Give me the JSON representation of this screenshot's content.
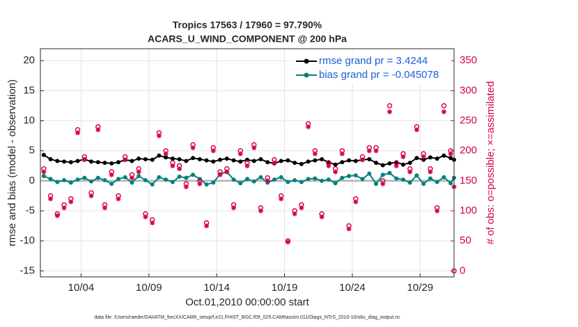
{
  "chart_data": {
    "type": "line",
    "title": "Tropics 17563 / 17960 = 97.790%",
    "subtitle": "ACARS_U_WIND_COMPONENT @ 200 hPa",
    "xlabel": "Oct.01,2010 00:00:00 start",
    "ylabel": "rmse and bias (model - observation)",
    "y2label": "# of obs: o=possible; ×=assimilated",
    "footnote": "data file: /Users/raeder/DAI/ATM_forcXX/CAM6_setup/f.e21.FHIST_BGC.f09_025.CAM6assim.011/Diags_NTrS_2010-10/obs_diag_output.nc",
    "xlim": [
      0,
      30.5
    ],
    "xticks": [
      {
        "value": 3,
        "label": "10/04"
      },
      {
        "value": 8,
        "label": "10/09"
      },
      {
        "value": 13,
        "label": "10/14"
      },
      {
        "value": 18,
        "label": "10/19"
      },
      {
        "value": 23,
        "label": "10/24"
      },
      {
        "value": 28,
        "label": "10/29"
      }
    ],
    "ylim": [
      -16,
      22
    ],
    "yticks": [
      -15,
      -10,
      -5,
      0,
      5,
      10,
      15,
      20
    ],
    "y2lim": [
      -10,
      370
    ],
    "y2ticks": [
      0,
      50,
      100,
      150,
      200,
      250,
      300,
      350
    ],
    "grid": true,
    "legend": "upper right",
    "x": [
      0.25,
      0.75,
      1.25,
      1.75,
      2.25,
      2.75,
      3.25,
      3.75,
      4.25,
      4.75,
      5.25,
      5.75,
      6.25,
      6.75,
      7.25,
      7.75,
      8.25,
      8.75,
      9.25,
      9.75,
      10.25,
      10.75,
      11.25,
      11.75,
      12.25,
      12.75,
      13.25,
      13.75,
      14.25,
      14.75,
      15.25,
      15.75,
      16.25,
      16.75,
      17.25,
      17.75,
      18.25,
      18.75,
      19.25,
      19.75,
      20.25,
      20.75,
      21.25,
      21.75,
      22.25,
      22.75,
      23.25,
      23.75,
      24.25,
      24.75,
      25.25,
      25.75,
      26.25,
      26.75,
      27.25,
      27.75,
      28.25,
      28.75,
      29.25,
      29.75,
      30.25,
      30.5
    ],
    "series": [
      {
        "name": "rmse grand pr = 3.4244",
        "color": "#000000",
        "marker": "dot",
        "values": [
          4.3,
          3.6,
          3.3,
          3.2,
          3.1,
          3.3,
          3.6,
          3.2,
          3.1,
          3.0,
          2.9,
          3.1,
          3.5,
          3.3,
          3.7,
          3.6,
          3.5,
          4.2,
          3.9,
          3.7,
          3.6,
          3.3,
          3.8,
          3.6,
          3.4,
          3.2,
          3.5,
          3.7,
          3.4,
          3.2,
          3.5,
          3.3,
          3.6,
          3.1,
          2.9,
          3.3,
          3.4,
          3.0,
          2.8,
          3.2,
          3.4,
          3.6,
          3.1,
          2.7,
          3.1,
          3.4,
          3.3,
          3.5,
          3.6,
          3.0,
          2.6,
          2.9,
          3.1,
          2.7,
          3.0,
          3.8,
          3.5,
          3.9,
          3.7,
          4.2,
          3.8,
          3.5
        ]
      },
      {
        "name": "bias grand pr = -0.045078",
        "color": "#008080",
        "marker": "dot",
        "values": [
          0.8,
          0.3,
          -0.2,
          0.1,
          -0.3,
          0.2,
          0.5,
          -0.1,
          0.5,
          0.1,
          -0.5,
          0.3,
          0.6,
          -0.3,
          0.8,
          0.1,
          -0.6,
          0.6,
          0.2,
          -0.2,
          0.7,
          0.5,
          1.0,
          0.3,
          -0.6,
          -0.3,
          1.1,
          1.5,
          0.2,
          -0.4,
          0.3,
          -0.1,
          0.6,
          -0.3,
          0.2,
          0.6,
          -0.2,
          0.1,
          -0.2,
          0.3,
          0.4,
          0.0,
          0.2,
          -0.4,
          0.5,
          0.8,
          0.9,
          0.3,
          1.2,
          -0.5,
          1.0,
          1.3,
          0.4,
          0.2,
          -0.3,
          0.9,
          -0.5,
          0.4,
          -0.2,
          0.6,
          -0.4,
          0.5
        ]
      },
      {
        "color": "#d6004f",
        "marker": "circle",
        "axis": "y2",
        "values": [
          170,
          125,
          95,
          110,
          120,
          235,
          190,
          130,
          240,
          110,
          165,
          125,
          190,
          160,
          170,
          95,
          85,
          230,
          200,
          180,
          175,
          145,
          210,
          150,
          80,
          205,
          165,
          170,
          110,
          200,
          180,
          210,
          105,
          155,
          185,
          125,
          50,
          100,
          110,
          245,
          200,
          95,
          180,
          170,
          200,
          75,
          120,
          190,
          205,
          205,
          150,
          275,
          180,
          195,
          170,
          240,
          195,
          170,
          105,
          275,
          200,
          0
        ]
      },
      {
        "color": "#d6004f",
        "marker": "asterisk",
        "axis": "y2",
        "values": [
          165,
          120,
          92,
          105,
          115,
          230,
          185,
          125,
          235,
          105,
          160,
          120,
          185,
          155,
          165,
          90,
          80,
          225,
          195,
          175,
          170,
          140,
          205,
          145,
          75,
          200,
          160,
          165,
          105,
          195,
          175,
          205,
          100,
          150,
          180,
          120,
          48,
          95,
          105,
          240,
          195,
          90,
          175,
          165,
          195,
          70,
          115,
          185,
          200,
          200,
          145,
          265,
          175,
          190,
          165,
          235,
          190,
          165,
          100,
          265,
          195,
          140
        ]
      }
    ]
  }
}
